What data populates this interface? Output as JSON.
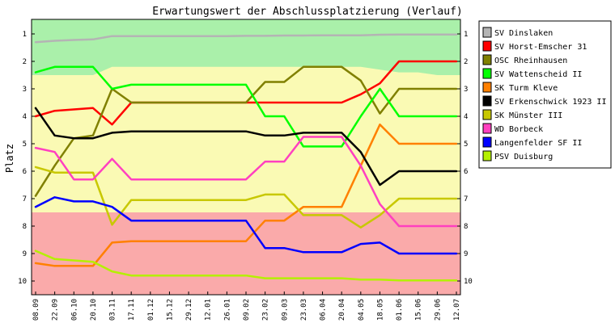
{
  "chart_data": {
    "type": "line",
    "title": "Erwartungswert der Abschlussplatzierung (Verlauf)",
    "ylabel": "Platz",
    "xlabel": "",
    "ylim": [
      1,
      10
    ],
    "y_inverted": true,
    "y_ticks": [
      "1",
      "2",
      "3",
      "4",
      "5",
      "6",
      "7",
      "8",
      "9",
      "10"
    ],
    "x_tick_labels": [
      "08.09",
      "22.09",
      "06.10",
      "20.10",
      "03.11",
      "17.11",
      "01.12",
      "15.12",
      "29.12",
      "12.01",
      "26.01",
      "09.02",
      "23.02",
      "09.03",
      "23.03",
      "06.04",
      "20.04",
      "04.05",
      "18.05",
      "01.06",
      "15.06",
      "29.06",
      "12.07"
    ],
    "x": [
      0,
      1,
      2,
      3,
      4,
      5,
      6,
      7,
      8,
      9,
      10,
      11,
      12,
      13,
      14,
      15,
      16,
      17,
      18,
      19,
      20,
      21,
      22
    ],
    "legend_position": "right",
    "grid": false,
    "background_bands": [
      {
        "name": "top",
        "color": "#aaf0aa"
      },
      {
        "name": "middle",
        "color": "#fafab4"
      },
      {
        "name": "bottom",
        "color": "#faaaaa"
      }
    ],
    "top_band_lower_boundary": [
      2.5,
      2.5,
      2.5,
      2.5,
      2.2,
      2.2,
      2.2,
      2.2,
      2.2,
      2.2,
      2.2,
      2.2,
      2.2,
      2.2,
      2.2,
      2.2,
      2.2,
      2.2,
      2.3,
      2.4,
      2.4,
      2.5,
      2.5
    ],
    "bottom_band_upper_boundary": 7.5,
    "series": [
      {
        "name": "SV Dinslaken",
        "color": "#b4b4b4",
        "values": [
          1.3,
          1.25,
          1.22,
          1.2,
          1.08,
          1.08,
          1.08,
          1.08,
          1.08,
          1.08,
          1.08,
          1.07,
          1.07,
          1.06,
          1.06,
          1.05,
          1.05,
          1.05,
          1.03,
          1.02,
          1.02,
          1.02,
          1.02
        ]
      },
      {
        "name": "SV Horst-Emscher 31",
        "color": "#ff0000",
        "values": [
          4.0,
          3.8,
          3.75,
          3.7,
          4.3,
          3.5,
          3.5,
          3.5,
          3.5,
          3.5,
          3.5,
          3.5,
          3.5,
          3.5,
          3.5,
          3.5,
          3.5,
          3.2,
          2.8,
          2.0,
          2.0,
          2.0,
          2.0
        ]
      },
      {
        "name": "OSC Rheinhausen",
        "color": "#808000",
        "values": [
          6.9,
          5.8,
          4.8,
          4.7,
          3.0,
          3.5,
          3.5,
          3.5,
          3.5,
          3.5,
          3.5,
          3.5,
          2.75,
          2.75,
          2.2,
          2.2,
          2.2,
          2.7,
          3.9,
          3.0,
          3.0,
          3.0,
          3.0
        ]
      },
      {
        "name": "SV Wattenscheid II",
        "color": "#00ff00",
        "values": [
          2.4,
          2.2,
          2.2,
          2.2,
          3.0,
          2.85,
          2.85,
          2.85,
          2.85,
          2.85,
          2.85,
          2.85,
          4.0,
          4.0,
          5.1,
          5.1,
          5.1,
          4.0,
          3.0,
          4.0,
          4.0,
          4.0,
          4.0
        ]
      },
      {
        "name": "SK Turm Kleve",
        "color": "#ff8000",
        "values": [
          9.35,
          9.45,
          9.45,
          9.45,
          8.6,
          8.55,
          8.55,
          8.55,
          8.55,
          8.55,
          8.55,
          8.55,
          7.8,
          7.8,
          7.3,
          7.3,
          7.3,
          5.8,
          4.3,
          5.0,
          5.0,
          5.0,
          5.0
        ]
      },
      {
        "name": "SV Erkenschwick 1923 II",
        "color": "#000000",
        "values": [
          3.7,
          4.7,
          4.8,
          4.8,
          4.6,
          4.55,
          4.55,
          4.55,
          4.55,
          4.55,
          4.55,
          4.55,
          4.7,
          4.7,
          4.6,
          4.6,
          4.6,
          5.3,
          6.5,
          6.0,
          6.0,
          6.0,
          6.0
        ]
      },
      {
        "name": "SK Münster III",
        "color": "#c8c800",
        "values": [
          5.85,
          6.05,
          6.05,
          6.05,
          7.95,
          7.05,
          7.05,
          7.05,
          7.05,
          7.05,
          7.05,
          7.05,
          6.85,
          6.85,
          7.6,
          7.6,
          7.6,
          8.05,
          7.6,
          7.0,
          7.0,
          7.0,
          7.0
        ]
      },
      {
        "name": "WD Borbeck",
        "color": "#ff40c0",
        "values": [
          5.15,
          5.3,
          6.3,
          6.3,
          5.55,
          6.3,
          6.3,
          6.3,
          6.3,
          6.3,
          6.3,
          6.3,
          5.65,
          5.65,
          4.75,
          4.75,
          4.75,
          5.8,
          7.2,
          8.0,
          8.0,
          8.0,
          8.0
        ]
      },
      {
        "name": "Langenfelder SF II",
        "color": "#0000ff",
        "values": [
          7.3,
          6.95,
          7.1,
          7.1,
          7.3,
          7.8,
          7.8,
          7.8,
          7.8,
          7.8,
          7.8,
          7.8,
          8.8,
          8.8,
          8.95,
          8.95,
          8.95,
          8.65,
          8.6,
          9.0,
          9.0,
          9.0,
          9.0
        ]
      },
      {
        "name": "PSV Duisburg",
        "color": "#b4f000",
        "values": [
          8.9,
          9.2,
          9.25,
          9.3,
          9.65,
          9.8,
          9.8,
          9.8,
          9.8,
          9.8,
          9.8,
          9.8,
          9.9,
          9.9,
          9.9,
          9.9,
          9.9,
          9.95,
          9.95,
          9.98,
          9.98,
          9.98,
          9.98
        ]
      }
    ]
  }
}
